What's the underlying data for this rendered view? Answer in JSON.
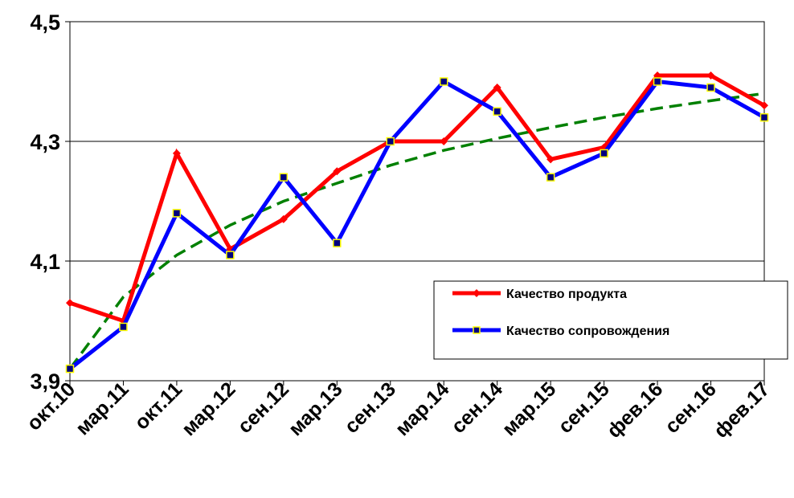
{
  "chart_data": {
    "type": "line",
    "categories": [
      "окт.10",
      "мар.11",
      "окт.11",
      "мар.12",
      "сен.12",
      "мар.13",
      "сен.13",
      "мар.14",
      "сен.14",
      "мар.15",
      "сен.15",
      "фев.16",
      "сен.16",
      "фев.17"
    ],
    "y_ticks": [
      "3,9",
      "4,1",
      "4,3",
      "4,5"
    ],
    "ylim": [
      3.9,
      4.5
    ],
    "grid": true,
    "legend_position": "bottom-right",
    "series": [
      {
        "name": "Качество продукта",
        "color": "#ff0000",
        "marker": "diamond",
        "values": [
          4.03,
          4.0,
          4.28,
          4.12,
          4.17,
          4.25,
          4.3,
          4.3,
          4.39,
          4.27,
          4.29,
          4.41,
          4.41,
          4.36
        ]
      },
      {
        "name": "Качество сопровождения",
        "color": "#0000ff",
        "marker": "square",
        "marker_fill": "#000080",
        "marker_edge": "#ffff00",
        "values": [
          3.92,
          3.99,
          4.18,
          4.11,
          4.24,
          4.13,
          4.3,
          4.4,
          4.35,
          4.24,
          4.28,
          4.4,
          4.39,
          4.34
        ]
      }
    ],
    "trendline": {
      "color": "#008000",
      "style": "dashed",
      "fit": "logarithmic",
      "values": [
        3.92,
        4.04,
        4.11,
        4.16,
        4.2,
        4.23,
        4.26,
        4.285,
        4.305,
        4.323,
        4.34,
        4.355,
        4.368,
        4.38
      ]
    }
  }
}
